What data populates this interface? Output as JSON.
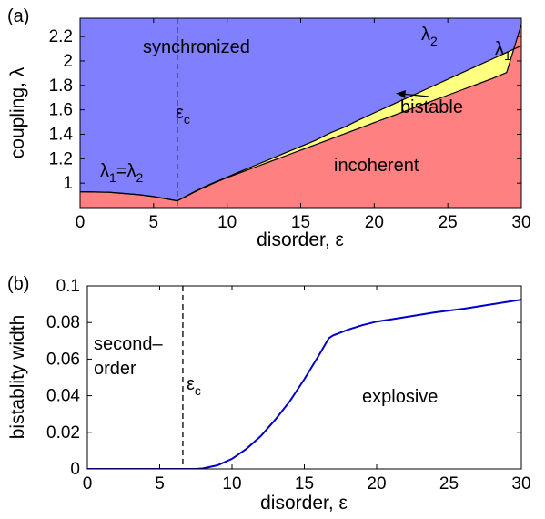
{
  "chart_data": [
    {
      "type": "area",
      "panel_label": "(a)",
      "xlabel": "disorder, ε",
      "ylabel": "coupling, λ",
      "xlim": [
        0,
        30
      ],
      "ylim": [
        0.8,
        2.35
      ],
      "xticks": [
        0,
        5,
        10,
        15,
        20,
        25,
        30
      ],
      "yticks": [
        1,
        1.2,
        1.4,
        1.6,
        1.8,
        2,
        2.2
      ],
      "ytick_labels": [
        "1",
        "1.2",
        "1.4",
        "1.6",
        "1.8",
        "2",
        "2.2"
      ],
      "grid": false,
      "critical_line": {
        "x": 6.6,
        "style": "dashed",
        "label": "ε",
        "label_sub": "c"
      },
      "regions": [
        {
          "key": "synchronized",
          "label": "synchronized",
          "color": "#8080ff"
        },
        {
          "key": "incoherent",
          "label": "incoherent",
          "color": "#ff8080"
        },
        {
          "key": "bistable",
          "label": "bistable",
          "color": "#ffff80"
        }
      ],
      "curve_labels": {
        "lambda2": {
          "main": "λ",
          "sub": "2"
        },
        "lambda1": {
          "main": "λ",
          "sub": "1"
        },
        "equal": {
          "a": "λ",
          "a_sub": "1",
          "eq": "=",
          "b": "λ",
          "b_sub": "2"
        }
      },
      "series": [
        {
          "name": "λ1",
          "x": [
            0,
            2,
            4,
            5,
            6.6,
            7,
            8,
            9,
            10,
            11,
            12,
            13,
            14,
            15,
            16,
            17,
            18,
            19,
            20,
            21,
            22,
            23,
            24,
            25,
            26,
            27,
            28,
            29,
            30
          ],
          "y": [
            0.93,
            0.925,
            0.905,
            0.89,
            0.855,
            0.88,
            0.94,
            0.995,
            1.045,
            1.09,
            1.135,
            1.18,
            1.225,
            1.27,
            1.315,
            1.36,
            1.405,
            1.45,
            1.495,
            1.54,
            1.585,
            1.63,
            1.675,
            1.72,
            1.765,
            1.81,
            1.855,
            1.905,
            2.3
          ]
        },
        {
          "name": "λ2",
          "x": [
            0,
            2,
            4,
            5,
            6.6,
            7,
            8,
            9,
            10,
            11,
            12,
            13,
            14,
            15,
            16,
            17,
            18,
            19,
            20,
            21,
            22,
            23,
            24,
            25,
            26,
            27,
            28,
            29,
            30
          ],
          "y": [
            0.93,
            0.925,
            0.905,
            0.89,
            0.855,
            0.88,
            0.945,
            1.0,
            1.05,
            1.1,
            1.15,
            1.2,
            1.25,
            1.3,
            1.35,
            1.41,
            1.46,
            1.52,
            1.575,
            1.63,
            1.685,
            1.74,
            1.795,
            1.85,
            1.905,
            1.96,
            2.015,
            2.07,
            2.125
          ]
        }
      ],
      "arrow_annotation": {
        "label": "bistable",
        "points_to": {
          "x": 21.5,
          "y": 1.735
        }
      }
    },
    {
      "type": "line",
      "panel_label": "(b)",
      "xlabel": "disorder, ε",
      "ylabel": "bistablity width",
      "xlim": [
        0,
        30
      ],
      "ylim": [
        0,
        0.1
      ],
      "xticks": [
        0,
        5,
        10,
        15,
        20,
        25,
        30
      ],
      "yticks": [
        0,
        0.02,
        0.04,
        0.06,
        0.08,
        0.1
      ],
      "ytick_labels": [
        "0",
        "0.02",
        "0.04",
        "0.06",
        "0.08",
        "0.1"
      ],
      "grid": false,
      "line_color": "#0000cc",
      "critical_line": {
        "x": 6.6,
        "style": "dashed",
        "label": "ε",
        "label_sub": "c"
      },
      "region_labels": {
        "left_line1": "second–",
        "left_line2": "order",
        "right": "explosive"
      },
      "series": [
        {
          "name": "",
          "x": [
            0,
            6.6,
            7.5,
            8,
            9,
            10,
            11,
            12,
            13,
            14,
            15,
            16,
            16.7,
            17,
            18,
            19,
            20,
            22,
            24,
            26,
            28,
            30
          ],
          "y": [
            0,
            0,
            0,
            0.0003,
            0.002,
            0.0055,
            0.011,
            0.018,
            0.027,
            0.037,
            0.049,
            0.062,
            0.0715,
            0.073,
            0.076,
            0.0785,
            0.0805,
            0.083,
            0.0855,
            0.0875,
            0.09,
            0.0925
          ]
        }
      ]
    }
  ]
}
